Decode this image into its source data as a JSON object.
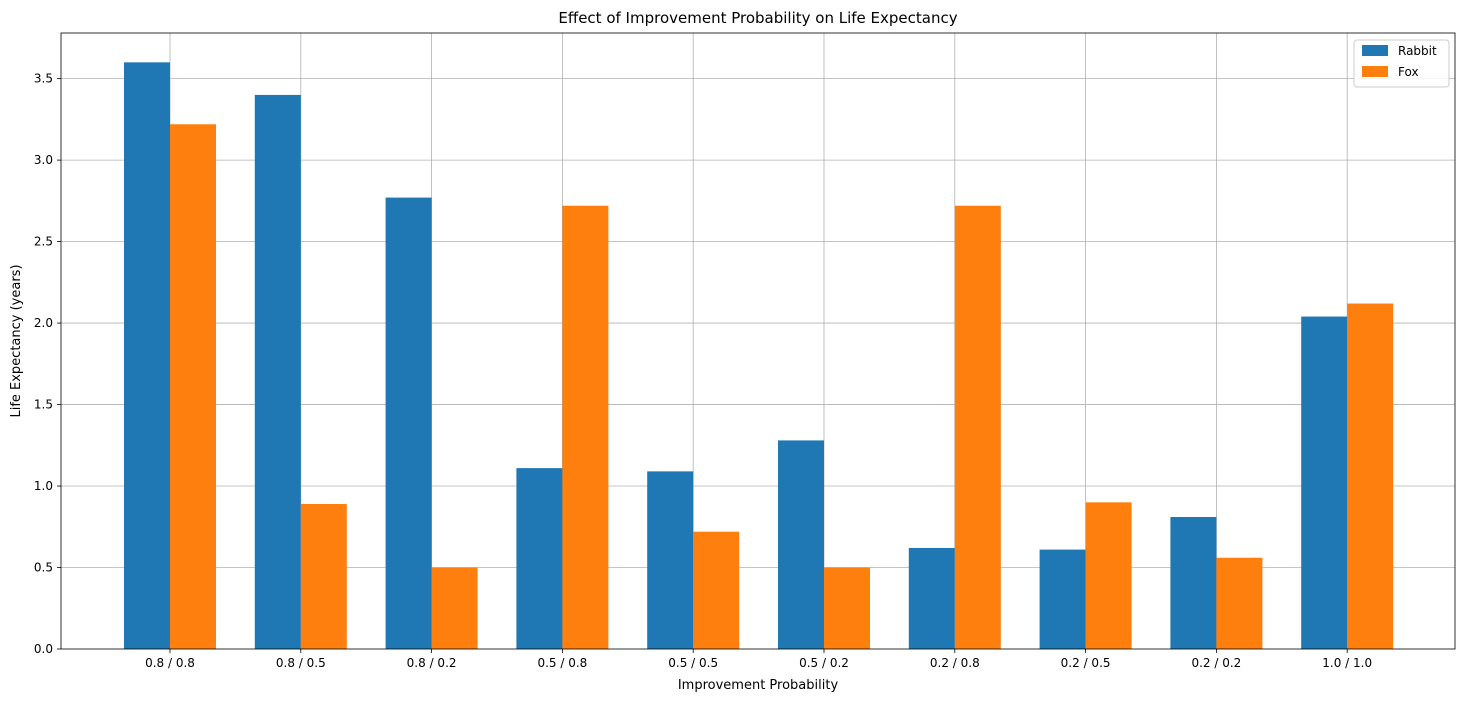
{
  "chart_data": {
    "type": "bar",
    "title": "Effect of Improvement Probability on Life Expectancy",
    "xlabel": "Improvement Probability",
    "ylabel": "Life Expectancy (years)",
    "categories": [
      "0.8 / 0.8",
      "0.8 / 0.5",
      "0.8 / 0.2",
      "0.5 / 0.8",
      "0.5 / 0.5",
      "0.5 / 0.2",
      "0.2 / 0.8",
      "0.2 / 0.5",
      "0.2 / 0.2",
      "1.0 / 1.0"
    ],
    "series": [
      {
        "name": "Rabbit",
        "color": "#1f77b4",
        "values": [
          3.6,
          3.4,
          2.77,
          1.11,
          1.09,
          1.28,
          0.62,
          0.61,
          0.81,
          2.04
        ]
      },
      {
        "name": "Fox",
        "color": "#ff7f0e",
        "values": [
          3.22,
          0.89,
          0.5,
          2.72,
          0.72,
          0.5,
          2.72,
          0.9,
          0.56,
          2.12
        ]
      }
    ],
    "ylim": [
      0,
      3.78
    ],
    "yticks": [
      0.0,
      0.5,
      1.0,
      1.5,
      2.0,
      2.5,
      3.0,
      3.5
    ],
    "ytick_labels": [
      "0.0",
      "0.5",
      "1.0",
      "1.5",
      "2.0",
      "2.5",
      "3.0",
      "3.5"
    ],
    "grid": true,
    "legend_position": "top-right"
  }
}
